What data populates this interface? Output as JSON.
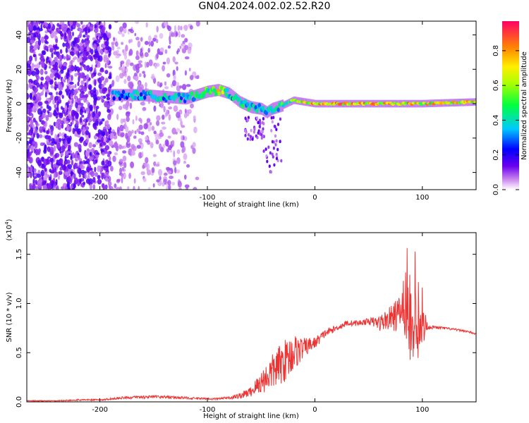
{
  "title": "GN04.2024.002.02.52.R20",
  "chart_data": [
    {
      "type": "heatmap",
      "xlabel": "Height of straight line (km)",
      "ylabel": "Frequency (Hz)",
      "xlim": [
        -268,
        150
      ],
      "ylim": [
        -50,
        48
      ],
      "xticks": [
        "-200",
        "-100",
        "0",
        "100"
      ],
      "xtick_values": [
        -200,
        -100,
        0,
        100
      ],
      "yticks": [
        "40",
        "20",
        "0",
        "-20",
        "-40"
      ],
      "ytick_values": [
        40,
        20,
        0,
        -20,
        -40
      ],
      "colorbar": {
        "label": "Normalized spectral amplitude",
        "ticks": [
          "0.0",
          "0.2",
          "0.4",
          "0.6",
          "0.8"
        ],
        "tick_values": [
          0.0,
          0.2,
          0.4,
          0.6,
          0.8
        ],
        "range": [
          0,
          0.97
        ]
      },
      "ridge": {
        "x": [
          -185,
          -160,
          -140,
          -120,
          -100,
          -90,
          -80,
          -70,
          -60,
          -50,
          -45,
          -40,
          -30,
          -20,
          -10,
          0,
          20,
          50,
          80,
          100,
          150
        ],
        "y": [
          5,
          5,
          4,
          3,
          7,
          8,
          6,
          1,
          -2,
          -3,
          -5,
          -3,
          -1,
          2,
          1,
          0,
          0,
          0,
          0,
          0,
          1
        ],
        "amplitude": [
          0.4,
          0.45,
          0.45,
          0.45,
          0.6,
          0.8,
          0.5,
          0.5,
          0.5,
          0.45,
          0.45,
          0.5,
          0.55,
          0.65,
          0.85,
          0.9,
          0.9,
          0.9,
          0.9,
          0.9,
          0.85
        ]
      }
    },
    {
      "type": "line",
      "xlabel": "Height of straight line (km)",
      "ylabel": "SNR (10 * v/v)",
      "y_multiplier": "(x10",
      "y_multiplier_exp": "4",
      "y_multiplier_close": ")",
      "xlim": [
        -268,
        150
      ],
      "ylim": [
        0,
        1.72
      ],
      "xticks": [
        "-200",
        "-100",
        "0",
        "100"
      ],
      "xtick_values": [
        -200,
        -100,
        0,
        100
      ],
      "yticks": [
        "0.0",
        "0.5",
        "1.0",
        "1.5"
      ],
      "ytick_values": [
        0.0,
        0.5,
        1.0,
        1.5
      ],
      "series": [
        {
          "color": "#ee3333",
          "x": [
            -268,
            -240,
            -220,
            -200,
            -180,
            -160,
            -140,
            -120,
            -100,
            -90,
            -80,
            -70,
            -60,
            -50,
            -40,
            -30,
            -20,
            -10,
            0,
            10,
            20,
            30,
            40,
            50,
            60,
            70,
            80,
            85,
            88,
            90,
            95,
            100,
            105,
            120,
            140,
            150
          ],
          "y": [
            0.01,
            0.01,
            0.02,
            0.02,
            0.04,
            0.05,
            0.05,
            0.04,
            0.03,
            0.03,
            0.04,
            0.06,
            0.1,
            0.2,
            0.3,
            0.4,
            0.5,
            0.55,
            0.6,
            0.7,
            0.75,
            0.8,
            0.8,
            0.82,
            0.8,
            0.85,
            0.9,
            0.95,
            1.0,
            0.7,
            0.6,
            0.8,
            0.76,
            0.75,
            0.72,
            0.69
          ],
          "noise": [
            0.005,
            0.005,
            0.008,
            0.008,
            0.012,
            0.015,
            0.015,
            0.012,
            0.01,
            0.012,
            0.015,
            0.03,
            0.05,
            0.12,
            0.18,
            0.22,
            0.2,
            0.1,
            0.06,
            0.04,
            0.03,
            0.03,
            0.03,
            0.03,
            0.08,
            0.12,
            0.2,
            0.35,
            0.5,
            0.5,
            0.35,
            0.3,
            0.02,
            0.012,
            0.01,
            0.01
          ]
        }
      ]
    }
  ]
}
